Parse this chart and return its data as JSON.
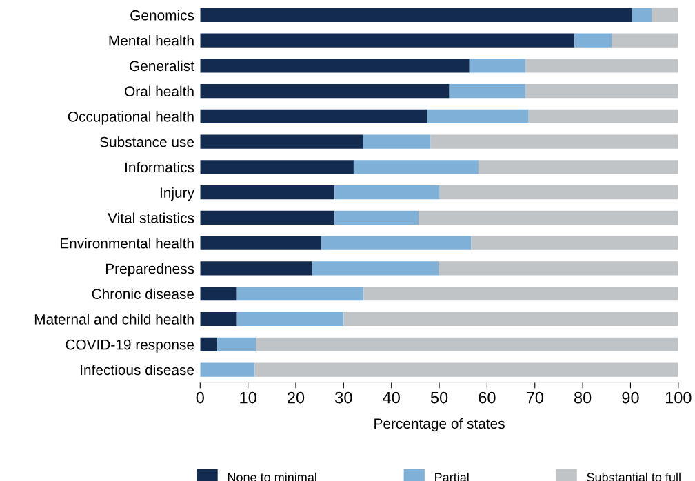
{
  "chart_data": {
    "type": "bar",
    "orientation": "horizontal",
    "stacked": true,
    "xlabel": "Percentage of states",
    "categories": [
      "Genomics",
      "Mental health",
      "Generalist",
      "Oral health",
      "Occupational health",
      "Substance use",
      "Informatics",
      "Injury",
      "Vital statistics",
      "Environmental health",
      "Preparedness",
      "Chronic disease",
      "Maternal and child health",
      "COVID-19 response",
      "Infectious disease"
    ],
    "series": [
      {
        "name": "None to minimal",
        "color": "#142b50",
        "values": [
          90.3,
          78.3,
          56.3,
          52.1,
          47.5,
          34.0,
          32.1,
          28.1,
          28.1,
          25.3,
          23.4,
          7.7,
          7.7,
          3.6,
          0
        ]
      },
      {
        "name": "Partial",
        "color": "#7fb1d8",
        "values": [
          4.1,
          7.8,
          11.7,
          15.9,
          21.2,
          14.2,
          26.1,
          22.0,
          17.6,
          31.4,
          26.5,
          26.5,
          22.3,
          8.1,
          11.4
        ]
      },
      {
        "name": "Substantial to full",
        "color": "#c0c4c7",
        "values": [
          5.6,
          13.9,
          32.0,
          32.0,
          31.3,
          51.8,
          41.8,
          49.9,
          54.3,
          43.3,
          50.1,
          65.8,
          70.0,
          88.3,
          88.6
        ]
      }
    ],
    "xlim": [
      0,
      100
    ],
    "xticks": [
      0,
      10,
      20,
      30,
      40,
      50,
      60,
      70,
      80,
      90,
      100
    ],
    "grid": false,
    "legend": "bottom"
  }
}
